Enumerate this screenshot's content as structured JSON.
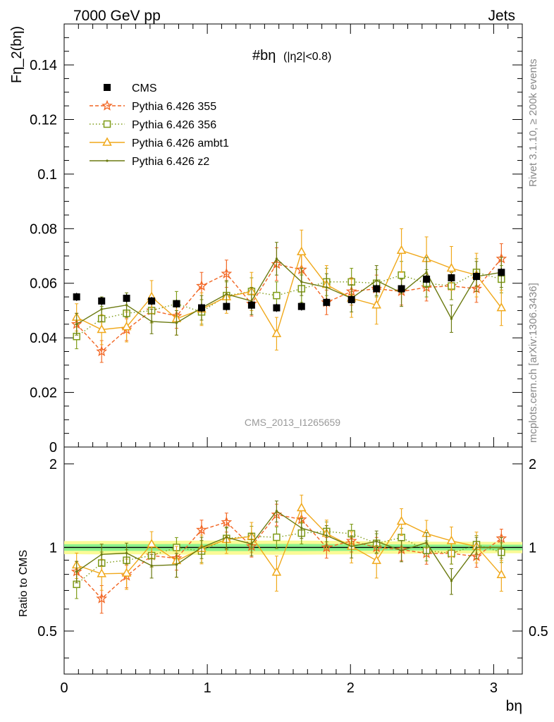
{
  "header": {
    "left": "7000 GeV pp",
    "right": "Jets"
  },
  "side_labels": {
    "rivet": "Rivet 3.1.10, ≥ 200k events",
    "mcplots": "mcplots.cern.ch [arXiv:1306.3436]"
  },
  "chart_data": {
    "type": "scatter",
    "title_main": "#bη",
    "title_sub": "(|η2|<0.8)",
    "ylabel": "Fη_2(bη)",
    "xlabel": "bη",
    "ratio_ylabel": "Ratio to CMS",
    "watermark": "CMS_2013_I1265659",
    "xlim": [
      0,
      3.2
    ],
    "ylim": [
      0,
      0.155
    ],
    "ratio_ylim": [
      0.35,
      2.3
    ],
    "x_ticks": [
      "0",
      "1",
      "2",
      "3"
    ],
    "y_ticks": [
      "0",
      "0.02",
      "0.04",
      "0.06",
      "0.08",
      "0.1",
      "0.12",
      "0.14"
    ],
    "ratio_ticks": [
      "0.5",
      "1",
      "2"
    ],
    "x": [
      0.087,
      0.262,
      0.436,
      0.611,
      0.785,
      0.96,
      1.134,
      1.309,
      1.484,
      1.658,
      1.833,
      2.007,
      2.182,
      2.356,
      2.531,
      2.705,
      2.88,
      3.054
    ],
    "series": [
      {
        "name": "CMS",
        "color": "#000000",
        "style": "data",
        "values": [
          0.055,
          0.0535,
          0.0545,
          0.0535,
          0.0525,
          0.051,
          0.0515,
          0.052,
          0.051,
          0.0515,
          0.053,
          0.054,
          0.058,
          0.058,
          0.0615,
          0.062,
          0.0625,
          0.064
        ],
        "errors": [
          0.0015,
          0.0015,
          0.0015,
          0.0015,
          0.0015,
          0.0015,
          0.0015,
          0.0015,
          0.0015,
          0.0015,
          0.0015,
          0.0015,
          0.0015,
          0.0015,
          0.0015,
          0.0015,
          0.0015,
          0.0015
        ]
      },
      {
        "name": "Pythia 6.426 355",
        "color": "#f26522",
        "style": "star",
        "dash": "5,3",
        "values": [
          0.045,
          0.035,
          0.043,
          0.05,
          0.048,
          0.059,
          0.0635,
          0.0525,
          0.067,
          0.065,
          0.053,
          0.057,
          0.058,
          0.057,
          0.0585,
          0.059,
          0.058,
          0.069
        ],
        "errors": [
          0.004,
          0.004,
          0.004,
          0.0045,
          0.0045,
          0.005,
          0.005,
          0.0045,
          0.006,
          0.006,
          0.0045,
          0.005,
          0.005,
          0.005,
          0.005,
          0.005,
          0.005,
          0.0055
        ]
      },
      {
        "name": "Pythia 6.426 356",
        "color": "#7e9b17",
        "style": "square-open",
        "dash": "1.5,3",
        "values": [
          0.0405,
          0.047,
          0.049,
          0.05,
          0.0525,
          0.0495,
          0.0555,
          0.057,
          0.0555,
          0.058,
          0.0605,
          0.0605,
          0.06,
          0.063,
          0.06,
          0.059,
          0.064,
          0.0615
        ],
        "errors": [
          0.0045,
          0.0045,
          0.0045,
          0.0045,
          0.0045,
          0.0045,
          0.005,
          0.005,
          0.005,
          0.005,
          0.005,
          0.005,
          0.005,
          0.005,
          0.005,
          0.005,
          0.005,
          0.005
        ]
      },
      {
        "name": "Pythia 6.426 ambt1",
        "color": "#f0a81a",
        "style": "triangle-open",
        "dash": "",
        "values": [
          0.0475,
          0.043,
          0.044,
          0.055,
          0.047,
          0.0505,
          0.055,
          0.057,
          0.0415,
          0.0715,
          0.0595,
          0.0545,
          0.052,
          0.072,
          0.069,
          0.0655,
          0.063,
          0.051
        ],
        "errors": [
          0.005,
          0.0055,
          0.0055,
          0.006,
          0.006,
          0.006,
          0.006,
          0.007,
          0.006,
          0.008,
          0.007,
          0.007,
          0.007,
          0.008,
          0.008,
          0.008,
          0.008,
          0.0065
        ]
      },
      {
        "name": "Pythia 6.426 z2",
        "color": "#6b7a10",
        "style": "dot",
        "dash": "",
        "values": [
          0.045,
          0.0505,
          0.052,
          0.046,
          0.0455,
          0.051,
          0.056,
          0.0535,
          0.069,
          0.0605,
          0.0585,
          0.0545,
          0.061,
          0.0565,
          0.064,
          0.047,
          0.0625,
          0.064
        ],
        "errors": [
          0.004,
          0.0045,
          0.0045,
          0.0045,
          0.0045,
          0.0045,
          0.005,
          0.005,
          0.006,
          0.005,
          0.005,
          0.005,
          0.0055,
          0.005,
          0.0055,
          0.005,
          0.0055,
          0.0055
        ]
      }
    ]
  }
}
